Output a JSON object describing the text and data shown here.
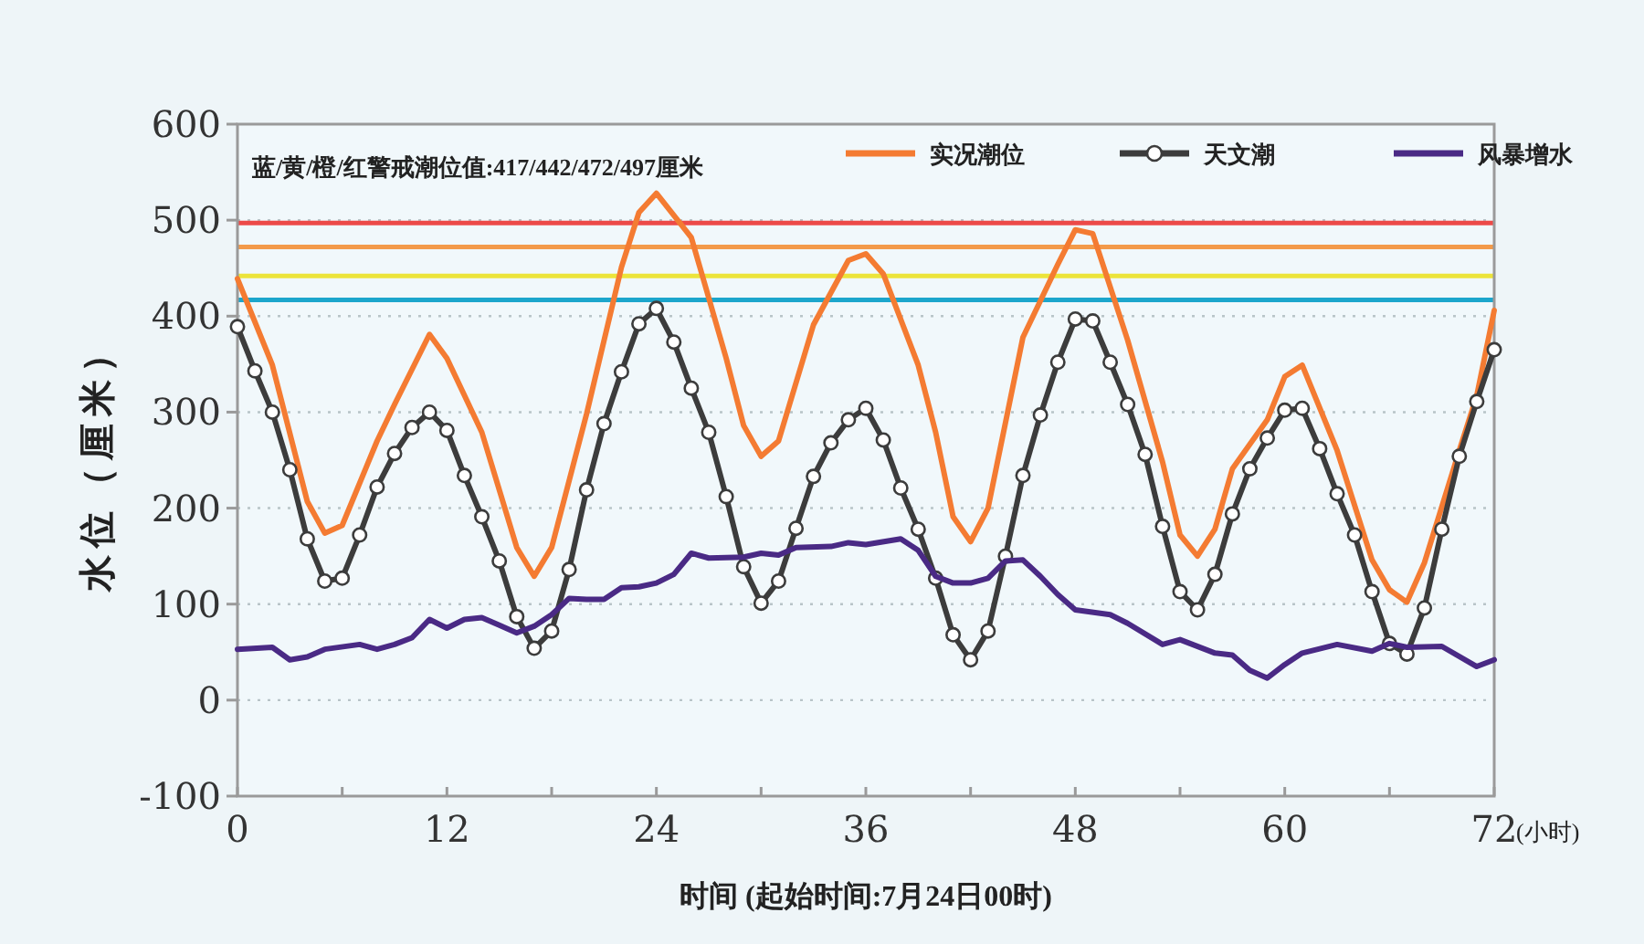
{
  "chart_data": {
    "type": "line",
    "xlabel": "时间 (起始时间:7月24日00时)",
    "ylabel": "水位（厘米）",
    "annotations": [
      "蓝/黄/橙/红警戒潮位值:417/442/472/497厘米",
      "(小时)"
    ],
    "xlim": [
      0,
      72
    ],
    "xticks": [
      0,
      {
        "value": 6,
        "label": null
      },
      12,
      {
        "value": 18,
        "label": null
      },
      24,
      {
        "value": 30,
        "label": null
      },
      36,
      {
        "value": 42,
        "label": null
      },
      48,
      {
        "value": 54,
        "label": null
      },
      60,
      {
        "value": 66,
        "label": null
      },
      72
    ],
    "ylim": [
      -100,
      600
    ],
    "yticks": [
      -100,
      0,
      100,
      200,
      300,
      400,
      500,
      600
    ],
    "grid": "y",
    "legend": "top right",
    "line_style": "solid",
    "ref_lines": [
      {
        "axis": "y",
        "value": 417,
        "color": "#1ca6cc"
      },
      {
        "axis": "y",
        "value": 442,
        "color": "#ece43a"
      },
      {
        "axis": "y",
        "value": 472,
        "color": "#f39a4a"
      },
      {
        "axis": "y",
        "value": 497,
        "color": "#ec4a48"
      }
    ],
    "series": [
      {
        "name": "实况潮位",
        "color": "#f47b32",
        "marker": "none",
        "x": [
          0,
          2,
          4,
          5,
          6,
          8,
          9,
          11,
          12,
          14,
          16,
          17,
          18,
          20,
          22,
          23,
          24,
          26,
          28,
          29,
          30,
          31,
          33,
          35,
          36,
          37,
          39,
          40,
          41,
          42,
          43,
          45,
          47,
          48,
          49,
          51,
          53,
          54,
          55,
          56,
          57,
          59,
          60,
          61,
          63,
          65,
          66,
          67,
          68,
          70,
          71,
          72
        ],
        "values": [
          439,
          349,
          207,
          174,
          182,
          270,
          308,
          381,
          356,
          279,
          159,
          129,
          159,
          298,
          451,
          508,
          528,
          482,
          356,
          286,
          254,
          270,
          391,
          458,
          465,
          444,
          349,
          279,
          191,
          165,
          200,
          378,
          454,
          490,
          486,
          375,
          248,
          172,
          150,
          178,
          241,
          292,
          337,
          349,
          260,
          146,
          115,
          102,
          143,
          260,
          317,
          406
        ]
      },
      {
        "name": "天文潮",
        "color": "#3c3c3c",
        "marker": "circle",
        "x": [
          0,
          1,
          2,
          3,
          4,
          5,
          6,
          7,
          8,
          9,
          10,
          11,
          12,
          13,
          14,
          15,
          16,
          17,
          18,
          19,
          20,
          21,
          22,
          23,
          24,
          25,
          26,
          27,
          28,
          29,
          30,
          31,
          32,
          33,
          34,
          35,
          36,
          37,
          38,
          39,
          40,
          41,
          42,
          43,
          44,
          45,
          46,
          47,
          48,
          49,
          50,
          51,
          52,
          53,
          54,
          55,
          56,
          57,
          58,
          59,
          60,
          61,
          62,
          63,
          64,
          65,
          66,
          67,
          68,
          69,
          70,
          71,
          72
        ],
        "values": [
          389,
          343,
          300,
          240,
          168,
          124,
          127,
          172,
          222,
          257,
          284,
          300,
          281,
          234,
          191,
          145,
          87,
          54,
          72,
          136,
          219,
          288,
          342,
          392,
          408,
          373,
          325,
          279,
          212,
          139,
          101,
          124,
          179,
          233,
          268,
          292,
          304,
          271,
          221,
          178,
          127,
          68,
          42,
          72,
          150,
          234,
          297,
          352,
          397,
          395,
          352,
          308,
          256,
          181,
          113,
          94,
          131,
          194,
          241,
          273,
          302,
          304,
          262,
          215,
          172,
          113,
          59,
          48,
          96,
          178,
          254,
          311,
          365
        ]
      },
      {
        "name": "风暴增水",
        "color": "#4a2a85",
        "marker": "none",
        "x": [
          0,
          2,
          3,
          4,
          5,
          7,
          8,
          9,
          10,
          11,
          12,
          13,
          14,
          15,
          16,
          17,
          18,
          19,
          20,
          21,
          22,
          23,
          24,
          25,
          26,
          27,
          29,
          30,
          31,
          32,
          34,
          35,
          36,
          38,
          39,
          40,
          41,
          42,
          43,
          44,
          45,
          46,
          47,
          48,
          50,
          51,
          53,
          54,
          56,
          57,
          58,
          59,
          60,
          61,
          63,
          65,
          66,
          67,
          69,
          71,
          72
        ],
        "values": [
          53,
          55,
          42,
          45,
          53,
          58,
          53,
          58,
          65,
          84,
          75,
          84,
          86,
          78,
          70,
          77,
          89,
          106,
          105,
          105,
          117,
          118,
          122,
          131,
          153,
          148,
          149,
          153,
          151,
          159,
          160,
          164,
          162,
          168,
          156,
          129,
          122,
          122,
          127,
          145,
          146,
          129,
          110,
          94,
          89,
          80,
          58,
          63,
          49,
          47,
          31,
          23,
          37,
          49,
          58,
          51,
          59,
          55,
          56,
          35,
          42
        ]
      }
    ]
  }
}
